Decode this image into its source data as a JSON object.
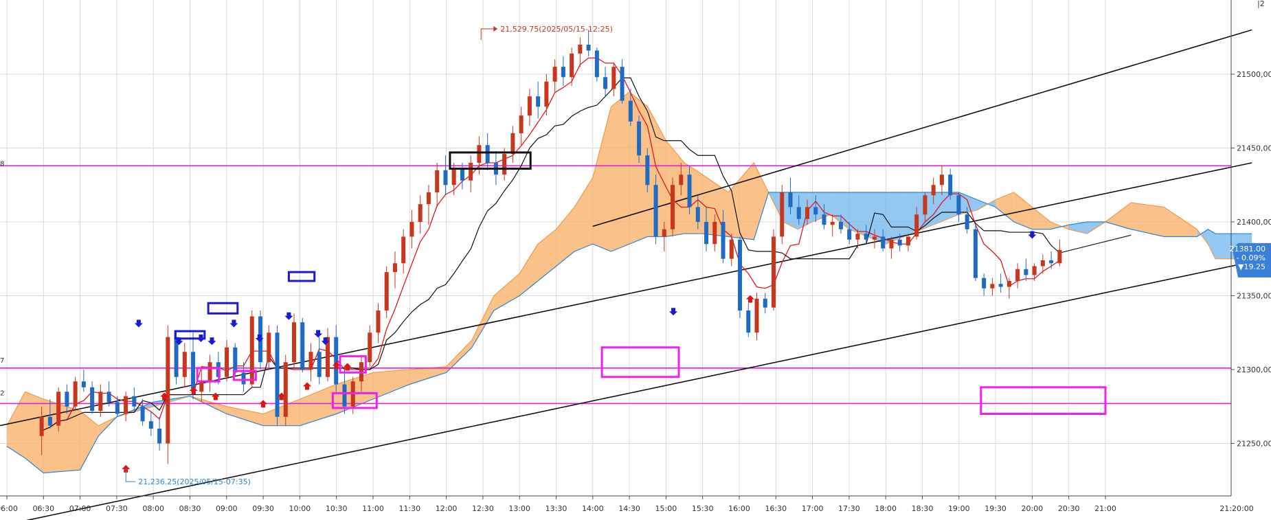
{
  "chart_data": {
    "type": "candlestick",
    "colors": {
      "up_candle": "#c8361d",
      "down_candle": "#1f6bc4",
      "conversion_line": "#e8141e",
      "base_line": "#111111",
      "cloud_bullish": "#f9b26b",
      "cloud_bearish": "#6db6ee",
      "cloud_edge": "#2a86d6",
      "horizontal_level": "#e01fe0",
      "marker_box_magenta": "#f020f0",
      "marker_box_blue": "#1a1ad6",
      "marker_box_black": "#111111",
      "current_price_tag": "#3a7fd8",
      "high_annotation": "#c8361d",
      "low_annotation": "#2a86d6"
    },
    "x_ticks": [
      "06:00",
      "06:30",
      "07:00",
      "07:30",
      "08:00",
      "08:30",
      "09:00",
      "09:30",
      "10:00",
      "10:30",
      "11:00",
      "11:30",
      "12:00",
      "12:30",
      "13:00",
      "13:30",
      "14:00",
      "14:30",
      "15:00",
      "15:30",
      "16:00",
      "16:30",
      "17:00",
      "17:30",
      "18:00",
      "18:30",
      "19:00",
      "19:30",
      "20:00",
      "20:30",
      "21:00",
      "21:20:00"
    ],
    "y_ticks": [
      "21500.00",
      "21450.00",
      "21400.00",
      "21350.00",
      "21300.00",
      "21250.00"
    ],
    "current_price": {
      "value": "21381.00",
      "change_pct": "- 0.09%",
      "change": "▼19.25"
    },
    "annotations": {
      "high": "21,529.75(2025/05/15-12:25)",
      "low": "21,236.25(2025/05/15-07:35)"
    },
    "left_edge_fragments": [
      "8",
      "7",
      "2"
    ],
    "corner_fragment": "|2",
    "horizontal_levels": [
      21438,
      21301,
      21277
    ],
    "price_range": [
      21200,
      21555
    ],
    "candles": [
      [
        21255,
        21275,
        21242,
        21268
      ],
      [
        21268,
        21280,
        21260,
        21262
      ],
      [
        21262,
        21288,
        21258,
        21285
      ],
      [
        21285,
        21290,
        21270,
        21275
      ],
      [
        21275,
        21295,
        21272,
        21292
      ],
      [
        21292,
        21300,
        21285,
        21288
      ],
      [
        21288,
        21292,
        21270,
        21272
      ],
      [
        21272,
        21290,
        21268,
        21285
      ],
      [
        21285,
        21292,
        21275,
        21278
      ],
      [
        21278,
        21282,
        21268,
        21270
      ],
      [
        21270,
        21285,
        21265,
        21282
      ],
      [
        21282,
        21288,
        21272,
        21275
      ],
      [
        21275,
        21280,
        21262,
        21265
      ],
      [
        21265,
        21272,
        21255,
        21260
      ],
      [
        21260,
        21268,
        21245,
        21250
      ],
      [
        21250,
        21330,
        21236,
        21322
      ],
      [
        21322,
        21326,
        21290,
        21295
      ],
      [
        21295,
        21318,
        21288,
        21312
      ],
      [
        21312,
        21325,
        21280,
        21285
      ],
      [
        21285,
        21300,
        21278,
        21292
      ],
      [
        21292,
        21310,
        21285,
        21305
      ],
      [
        21305,
        21312,
        21290,
        21295
      ],
      [
        21295,
        21320,
        21292,
        21315
      ],
      [
        21315,
        21318,
        21296,
        21298
      ],
      [
        21298,
        21305,
        21285,
        21290
      ],
      [
        21290,
        21340,
        21288,
        21336
      ],
      [
        21336,
        21340,
        21300,
        21305
      ],
      [
        21305,
        21330,
        21300,
        21325
      ],
      [
        21325,
        21330,
        21262,
        21268
      ],
      [
        21268,
        21310,
        21262,
        21305
      ],
      [
        21305,
        21338,
        21300,
        21332
      ],
      [
        21332,
        21335,
        21298,
        21300
      ],
      [
        21300,
        21318,
        21292,
        21312
      ],
      [
        21312,
        21322,
        21290,
        21295
      ],
      [
        21295,
        21328,
        21292,
        21322
      ],
      [
        21322,
        21330,
        21285,
        21290
      ],
      [
        21290,
        21300,
        21270,
        21275
      ],
      [
        21275,
        21295,
        21270,
        21292
      ],
      [
        21292,
        21310,
        21285,
        21305
      ],
      [
        21305,
        21330,
        21302,
        21325
      ],
      [
        21325,
        21345,
        21318,
        21340
      ],
      [
        21340,
        21370,
        21335,
        21366
      ],
      [
        21366,
        21380,
        21355,
        21372
      ],
      [
        21372,
        21395,
        21365,
        21390
      ],
      [
        21390,
        21408,
        21382,
        21400
      ],
      [
        21400,
        21418,
        21392,
        21412
      ],
      [
        21412,
        21425,
        21398,
        21420
      ],
      [
        21420,
        21440,
        21410,
        21435
      ],
      [
        21435,
        21445,
        21418,
        21425
      ],
      [
        21425,
        21440,
        21418,
        21436
      ],
      [
        21436,
        21440,
        21422,
        21428
      ],
      [
        21428,
        21445,
        21420,
        21440
      ],
      [
        21440,
        21458,
        21432,
        21452
      ],
      [
        21452,
        21460,
        21435,
        21440
      ],
      [
        21440,
        21448,
        21425,
        21432
      ],
      [
        21432,
        21450,
        21428,
        21446
      ],
      [
        21446,
        21465,
        21440,
        21460
      ],
      [
        21460,
        21478,
        21452,
        21472
      ],
      [
        21472,
        21490,
        21465,
        21485
      ],
      [
        21485,
        21495,
        21470,
        21478
      ],
      [
        21478,
        21500,
        21472,
        21495
      ],
      [
        21495,
        21510,
        21488,
        21505
      ],
      [
        21505,
        21512,
        21492,
        21498
      ],
      [
        21498,
        21518,
        21492,
        21514
      ],
      [
        21514,
        21525,
        21505,
        21520
      ],
      [
        21520,
        21530,
        21512,
        21516
      ],
      [
        21516,
        21518,
        21495,
        21498
      ],
      [
        21498,
        21505,
        21485,
        21490
      ],
      [
        21490,
        21508,
        21485,
        21505
      ],
      [
        21505,
        21510,
        21480,
        21482
      ],
      [
        21482,
        21490,
        21465,
        21468
      ],
      [
        21468,
        21472,
        21440,
        21445
      ],
      [
        21445,
        21450,
        21420,
        21425
      ],
      [
        21425,
        21432,
        21385,
        21390
      ],
      [
        21390,
        21400,
        21380,
        21395
      ],
      [
        21395,
        21430,
        21390,
        21425
      ],
      [
        21425,
        21440,
        21418,
        21432
      ],
      [
        21432,
        21438,
        21405,
        21410
      ],
      [
        21410,
        21418,
        21395,
        21400
      ],
      [
        21400,
        21410,
        21380,
        21385
      ],
      [
        21385,
        21405,
        21380,
        21400
      ],
      [
        21400,
        21408,
        21372,
        21375
      ],
      [
        21375,
        21392,
        21370,
        21388
      ],
      [
        21388,
        21390,
        21335,
        21340
      ],
      [
        21340,
        21345,
        21322,
        21325
      ],
      [
        21325,
        21352,
        21320,
        21348
      ],
      [
        21348,
        21352,
        21338,
        21342
      ],
      [
        21342,
        21395,
        21340,
        21390
      ],
      [
        21390,
        21425,
        21385,
        21420
      ],
      [
        21420,
        21430,
        21405,
        21410
      ],
      [
        21410,
        21418,
        21398,
        21402
      ],
      [
        21402,
        21415,
        21398,
        21410
      ],
      [
        21410,
        21418,
        21400,
        21405
      ],
      [
        21405,
        21412,
        21395,
        21398
      ],
      [
        21398,
        21405,
        21390,
        21400
      ],
      [
        21400,
        21405,
        21392,
        21395
      ],
      [
        21395,
        21400,
        21385,
        21388
      ],
      [
        21388,
        21395,
        21382,
        21392
      ],
      [
        21392,
        21398,
        21385,
        21388
      ],
      [
        21388,
        21395,
        21382,
        21390
      ],
      [
        21390,
        21395,
        21380,
        21382
      ],
      [
        21382,
        21390,
        21375,
        21388
      ],
      [
        21388,
        21392,
        21380,
        21384
      ],
      [
        21384,
        21392,
        21380,
        21390
      ],
      [
        21390,
        21410,
        21388,
        21405
      ],
      [
        21405,
        21420,
        21400,
        21418
      ],
      [
        21418,
        21430,
        21412,
        21425
      ],
      [
        21425,
        21438,
        21418,
        21432
      ],
      [
        21432,
        21436,
        21415,
        21418
      ],
      [
        21418,
        21420,
        21400,
        21405
      ],
      [
        21405,
        21410,
        21392,
        21395
      ],
      [
        21395,
        21398,
        21360,
        21362
      ],
      [
        21362,
        21365,
        21350,
        21355
      ],
      [
        21355,
        21362,
        21350,
        21358
      ],
      [
        21358,
        21365,
        21352,
        21356
      ],
      [
        21356,
        21362,
        21348,
        21360
      ],
      [
        21360,
        21372,
        21355,
        21368
      ],
      [
        21368,
        21375,
        21360,
        21364
      ],
      [
        21364,
        21372,
        21360,
        21370
      ],
      [
        21370,
        21378,
        21365,
        21374
      ],
      [
        21374,
        21380,
        21368,
        21372
      ],
      [
        21372,
        21388,
        21370,
        21381
      ]
    ]
  }
}
